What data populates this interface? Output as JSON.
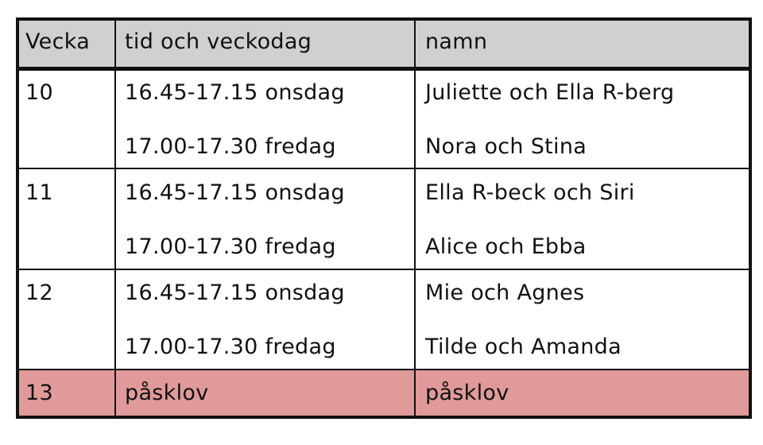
{
  "table": {
    "header": [
      "Vecka",
      "tid och veckodag",
      "namn"
    ],
    "rows": [
      {
        "week": "10",
        "entries": [
          {
            "time": "16.45-17.15 onsdag",
            "names": "Juliette och Ella R-berg"
          },
          {
            "time": "17.00-17.30 fredag",
            "names": "Nora och Stina"
          }
        ]
      },
      {
        "week": "11",
        "entries": [
          {
            "time": "16.45-17.15 onsdag",
            "names": "Ella R-beck och Siri"
          },
          {
            "time": "17.00-17.30 fredag",
            "names": "Alice och Ebba"
          }
        ]
      },
      {
        "week": "12",
        "entries": [
          {
            "time": "16.45-17.15 onsdag",
            "names": "Mie och Agnes"
          },
          {
            "time": "17.00-17.30 fredag",
            "names": "Tilde och Amanda"
          }
        ]
      },
      {
        "week": "13",
        "entries": [
          {
            "time": "påsklov",
            "names": "påsklov"
          }
        ]
      }
    ]
  }
}
